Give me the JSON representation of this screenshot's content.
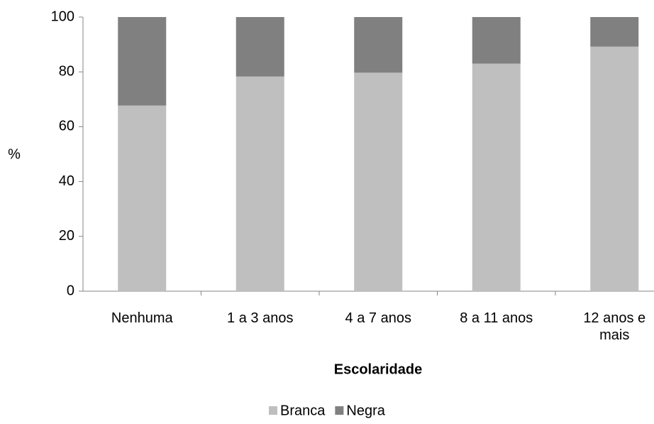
{
  "chart_data": {
    "type": "stacked_bar",
    "x_label": "Escolaridade",
    "y_label": "%",
    "categories": [
      "Nenhuma",
      "1 a 3 anos",
      "4 a 7 anos",
      "8 a 11 anos",
      "12 anos e mais"
    ],
    "series": [
      {
        "name": "Branca",
        "color": "#bfbfbf",
        "values": [
          67.7,
          78.3,
          79.7,
          83.0,
          89.2
        ]
      },
      {
        "name": "Negra",
        "color": "#808080",
        "values": [
          32.3,
          21.7,
          20.3,
          17.0,
          10.8
        ]
      }
    ],
    "ylim": [
      0,
      100
    ],
    "yticks": [
      0,
      20,
      40,
      60,
      80,
      100
    ],
    "grid": false,
    "legend": "bottom"
  }
}
